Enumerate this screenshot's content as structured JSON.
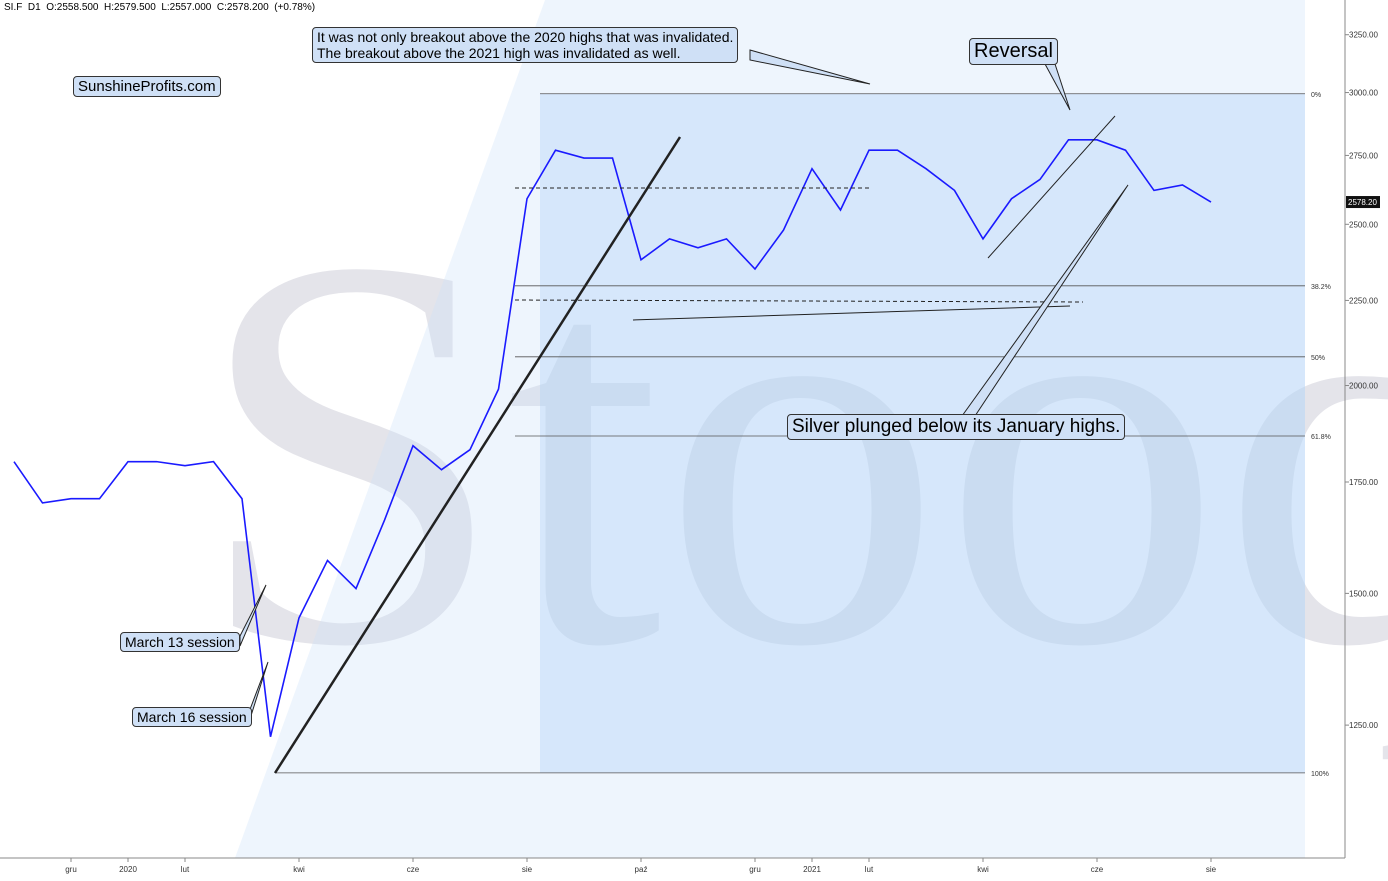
{
  "chart_data": {
    "type": "line",
    "header": "SI.F  D1  O:2558.500  H:2579.500  L:2557.000  C:2578.200  (+0.78%)",
    "watermark": "Stooq",
    "log_scale": true,
    "categories": [
      null,
      null,
      "gru",
      null,
      "2020",
      null,
      "lut",
      null,
      null,
      null,
      "kwi",
      null,
      null,
      null,
      "cze",
      null,
      null,
      null,
      "sie",
      null,
      null,
      null,
      "paź",
      null,
      null,
      null,
      "gru",
      null,
      "2021",
      null,
      "lut",
      null,
      null,
      null,
      "kwi",
      null,
      null,
      null,
      "cze",
      null,
      null,
      null,
      "sie"
    ],
    "series": [
      {
        "name": "SI.F",
        "color": "#1a1aff",
        "values": [
          1800,
          1700,
          1710,
          1710,
          1800,
          1800,
          1790,
          1800,
          1710,
          1230,
          1450,
          1570,
          1510,
          1660,
          1840,
          1780,
          1830,
          1990,
          2590,
          2770,
          2740,
          2740,
          2380,
          2450,
          2420,
          2450,
          2350,
          2480,
          2700,
          2550,
          2770,
          2770,
          2700,
          2620,
          2450,
          2590,
          2660,
          2810,
          2810,
          2770,
          2620,
          2640,
          2578.2
        ]
      }
    ],
    "ylim": [
      1040,
      3410
    ],
    "yticks": [
      {
        "value": 1250,
        "label": "1250.00"
      },
      {
        "value": 1500,
        "label": "1500.00"
      },
      {
        "value": 1750,
        "label": "1750.00"
      },
      {
        "value": 2000,
        "label": "2000.00"
      },
      {
        "value": 2250,
        "label": "2250.00"
      },
      {
        "value": 2500,
        "label": "2500.00"
      },
      {
        "value": 2750,
        "label": "2750.00"
      },
      {
        "value": 3000,
        "label": "3000.00"
      },
      {
        "value": 3250,
        "label": "3250.00"
      }
    ],
    "last_price": {
      "value": 2578.2,
      "label": "2578.20"
    },
    "fib_levels": [
      {
        "label": "0%",
        "price": 2995
      },
      {
        "label": "38.2%",
        "price": 2296
      },
      {
        "label": "50%",
        "price": 2081
      },
      {
        "label": "61.8%",
        "price": 1865
      },
      {
        "label": "100%",
        "price": 1170
      }
    ],
    "annotations": [
      "SunshineProfits.com",
      "It was not only breakout above the 2020 highs that was invalidated.",
      "The breakout above the 2021 high was invalidated as well.",
      "Reversal",
      "Silver plunged below its January highs.",
      "March 13 session",
      "March 16 session"
    ]
  }
}
